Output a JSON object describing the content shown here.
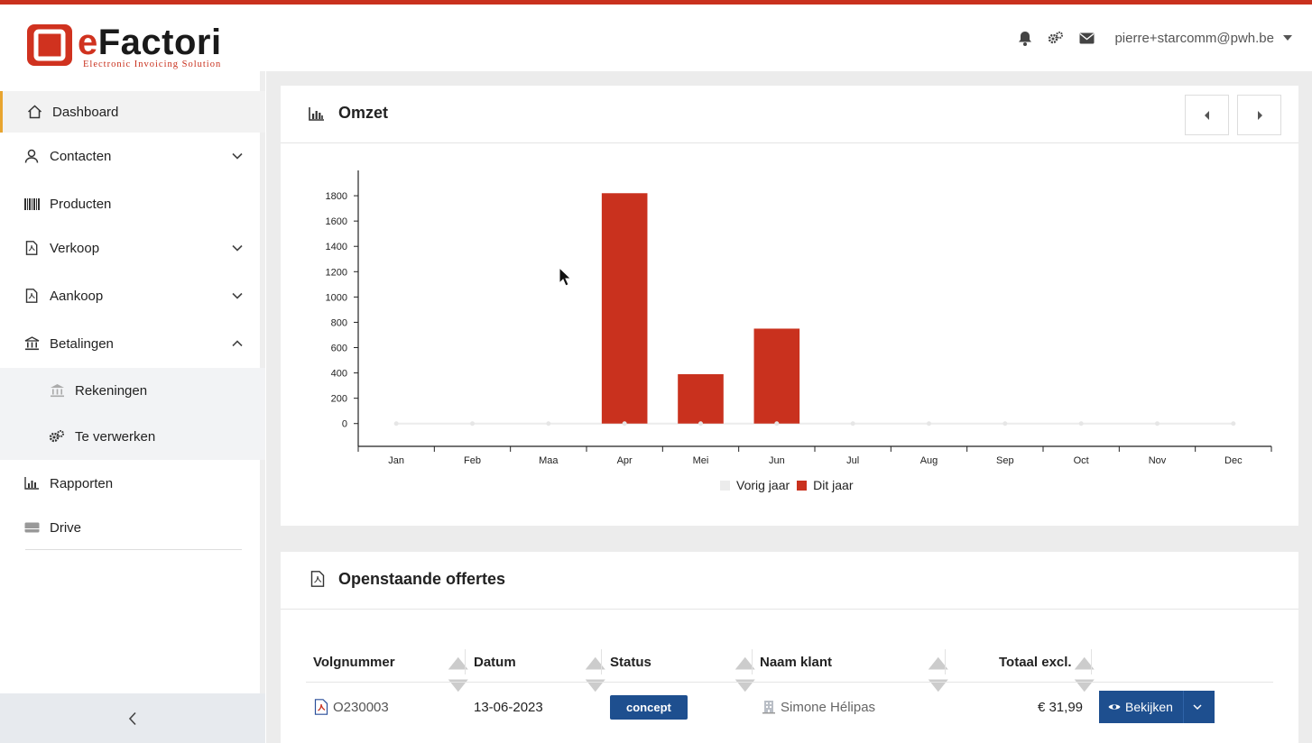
{
  "header": {
    "logo_text_e": "e",
    "logo_text_rest": "Factori",
    "logo_subtitle": "Electronic Invoicing Solution",
    "user_email": "pierre+starcomm@pwh.be",
    "icons": [
      "bell-icon",
      "gears-icon",
      "envelope-icon"
    ]
  },
  "sidebar": {
    "items": [
      {
        "label": "Dashboard",
        "icon": "home-icon",
        "active": true
      },
      {
        "label": "Contacten",
        "icon": "user-icon",
        "chevron": "down"
      },
      {
        "label": "Producten",
        "icon": "barcode-icon"
      },
      {
        "label": "Verkoop",
        "icon": "file-pdf-icon",
        "chevron": "down"
      },
      {
        "label": "Aankoop",
        "icon": "file-pdf-icon",
        "chevron": "down"
      },
      {
        "label": "Betalingen",
        "icon": "bank-icon",
        "chevron": "up"
      },
      {
        "label": "Rekeningen",
        "icon": "bank-icon",
        "sub": true
      },
      {
        "label": "Te verwerken",
        "icon": "gears-icon",
        "sub": true
      },
      {
        "label": "Rapporten",
        "icon": "bar-chart-icon"
      },
      {
        "label": "Drive",
        "icon": "drive-icon"
      }
    ]
  },
  "omzet": {
    "title": "Omzet"
  },
  "chart_data": {
    "type": "bar",
    "title": "Omzet",
    "categories": [
      "Jan",
      "Feb",
      "Maa",
      "Apr",
      "Mei",
      "Jun",
      "Jul",
      "Aug",
      "Sep",
      "Oct",
      "Nov",
      "Dec"
    ],
    "series": [
      {
        "name": "Vorig jaar",
        "color": "#ececec",
        "values": [
          0,
          0,
          0,
          0,
          0,
          0,
          0,
          0,
          0,
          0,
          0,
          0
        ]
      },
      {
        "name": "Dit jaar",
        "color": "#c9311e",
        "values": [
          0,
          0,
          0,
          1820,
          390,
          750,
          0,
          0,
          0,
          0,
          0,
          0
        ]
      }
    ],
    "yticks": [
      0,
      200,
      400,
      600,
      800,
      1000,
      1200,
      1400,
      1600,
      1800
    ],
    "ylim": [
      -180,
      2000
    ],
    "legend_position": "bottom-center",
    "grid": false
  },
  "offertes": {
    "title": "Openstaande offertes",
    "columns": [
      "Volgnummer",
      "Datum",
      "Status",
      "Naam klant",
      "Totaal excl."
    ],
    "rows": [
      {
        "nummer": "O230003",
        "datum": "13-06-2023",
        "status": "concept",
        "klant": "Simone Hélipas",
        "totaal": "€ 31,99",
        "actie": "Bekijken"
      }
    ]
  }
}
